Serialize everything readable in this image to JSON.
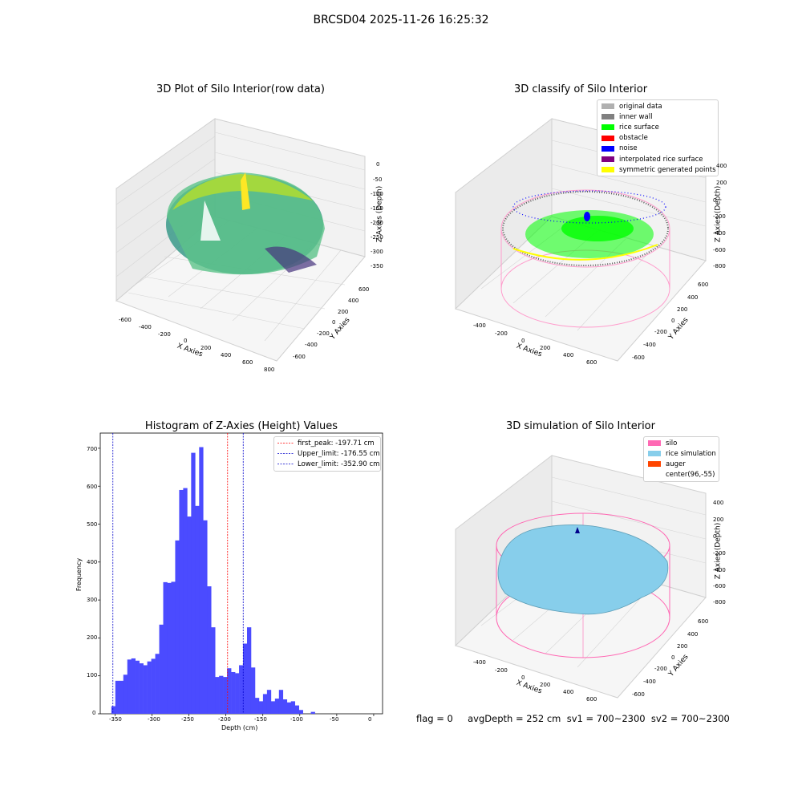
{
  "suptitle": "BRCSD04 2025-11-26 16:25:32",
  "panel1": {
    "title": "3D Plot of Silo Interior(row data)",
    "x_ticks": [
      "-600",
      "-400",
      "-200",
      "0",
      "200",
      "400",
      "600",
      "800"
    ],
    "y_ticks": [
      "-600",
      "-400",
      "-200",
      "0",
      "200",
      "400",
      "600"
    ],
    "z_ticks": [
      "0",
      "-50",
      "-100",
      "-150",
      "-200",
      "-250",
      "-300",
      "-350"
    ],
    "xlabel": "X Axies",
    "ylabel": "Y Axies",
    "zlabel": "Z Axies (Depth)"
  },
  "panel2": {
    "title": "3D classify of Silo Interior",
    "x_ticks": [
      "-400",
      "-200",
      "0",
      "200",
      "400",
      "600"
    ],
    "y_ticks": [
      "-600",
      "-400",
      "-200",
      "0",
      "200",
      "400",
      "600"
    ],
    "z_ticks": [
      "400",
      "200",
      "0",
      "-200",
      "-400",
      "-600",
      "-800"
    ],
    "xlabel": "X Axies",
    "ylabel": "Y Axies",
    "zlabel": "Z Axies (Depth)",
    "legend": [
      {
        "label": "original data",
        "color": "#b0b0b0"
      },
      {
        "label": "inner wall",
        "color": "#808080"
      },
      {
        "label": "rice surface",
        "color": "#00ff00"
      },
      {
        "label": "obstacle",
        "color": "#ff0000"
      },
      {
        "label": "noise",
        "color": "#0000ff"
      },
      {
        "label": "interpolated rice surface",
        "color": "#800080"
      },
      {
        "label": "symmetric generated points",
        "color": "#ffff00"
      }
    ]
  },
  "panel3": {
    "title": "Histogram of Z-Axies (Height) Values",
    "xlabel": "Depth (cm)",
    "ylabel": "Frequency",
    "x_ticks": [
      "-350",
      "-300",
      "-250",
      "-200",
      "-150",
      "-100",
      "-50",
      "0"
    ],
    "y_ticks": [
      "0",
      "100",
      "200",
      "300",
      "400",
      "500",
      "600",
      "700"
    ],
    "legend": [
      {
        "label": "first_peak: -197.71 cm",
        "color": "#ff0000"
      },
      {
        "label": "Upper_limit: -176.55 cm",
        "color": "#0000cc"
      },
      {
        "label": "Lower_limit: -352.90 cm",
        "color": "#0000cc"
      }
    ]
  },
  "panel4": {
    "title": "3D simulation of Silo Interior",
    "x_ticks": [
      "-400",
      "-200",
      "0",
      "200",
      "400",
      "600"
    ],
    "y_ticks": [
      "-600",
      "-400",
      "-200",
      "0",
      "200",
      "400",
      "600"
    ],
    "z_ticks": [
      "400",
      "200",
      "0",
      "-200",
      "-400",
      "-600",
      "-800"
    ],
    "xlabel": "X Axies",
    "ylabel": "Y Axies",
    "zlabel": "Z Axies (Depth)",
    "legend": [
      {
        "label": "silo",
        "color": "#ff69b4"
      },
      {
        "label": "rice simulation",
        "color": "#87ceeb"
      },
      {
        "label": "auger",
        "color": "#ff4500"
      },
      {
        "label": "center(96,-55)",
        "color": ""
      }
    ]
  },
  "footer": "flag = 0     avgDepth = 252 cm  sv1 = 700~2300  sv2 = 700~2300",
  "chart_data": [
    {
      "type": "scatter",
      "title": "3D Plot of Silo Interior(row data)",
      "xlabel": "X Axies",
      "ylabel": "Y Axies",
      "zlabel": "Z Axies (Depth)",
      "xlim": [
        -600,
        800
      ],
      "ylim": [
        -600,
        600
      ],
      "zlim": [
        -350,
        0
      ]
    },
    {
      "type": "scatter",
      "title": "3D classify of Silo Interior",
      "xlabel": "X Axies",
      "ylabel": "Y Axies",
      "zlabel": "Z Axies (Depth)",
      "series": [
        {
          "name": "original data"
        },
        {
          "name": "inner wall"
        },
        {
          "name": "rice surface"
        },
        {
          "name": "obstacle"
        },
        {
          "name": "noise"
        },
        {
          "name": "interpolated rice surface"
        },
        {
          "name": "symmetric generated points"
        }
      ],
      "legend": "top-right"
    },
    {
      "type": "bar",
      "title": "Histogram of Z-Axies (Height) Values",
      "xlabel": "Depth (cm)",
      "ylabel": "Frequency",
      "bin_width": 5.4,
      "bin_edges_start": -355,
      "values": [
        20,
        87,
        87,
        103,
        143,
        146,
        140,
        133,
        128,
        138,
        145,
        158,
        235,
        347,
        345,
        348,
        457,
        590,
        595,
        520,
        688,
        548,
        703,
        510,
        336,
        228,
        97,
        100,
        97,
        120,
        110,
        107,
        128,
        185,
        228,
        122,
        42,
        33,
        52,
        63,
        33,
        40,
        63,
        38,
        30,
        33,
        22,
        10,
        0,
        0,
        5,
        0
      ],
      "vlines": [
        {
          "x": -197.71,
          "label": "first_peak: -197.71 cm",
          "color": "#ff0000"
        },
        {
          "x": -176.55,
          "label": "Upper_limit: -176.55 cm",
          "color": "#0000cc"
        },
        {
          "x": -352.9,
          "label": "Lower_limit: -352.90 cm",
          "color": "#0000cc"
        }
      ],
      "xlim": [
        -370,
        12
      ],
      "ylim": [
        0,
        740
      ],
      "bar_color": "#4b4bff",
      "legend": "top-right"
    },
    {
      "type": "scatter",
      "title": "3D simulation of Silo Interior",
      "xlabel": "X Axies",
      "ylabel": "Y Axies",
      "zlabel": "Z Axies (Depth)",
      "series": [
        {
          "name": "silo"
        },
        {
          "name": "rice simulation"
        },
        {
          "name": "auger"
        },
        {
          "name": "center(96,-55)"
        }
      ],
      "legend": "top-right"
    }
  ]
}
